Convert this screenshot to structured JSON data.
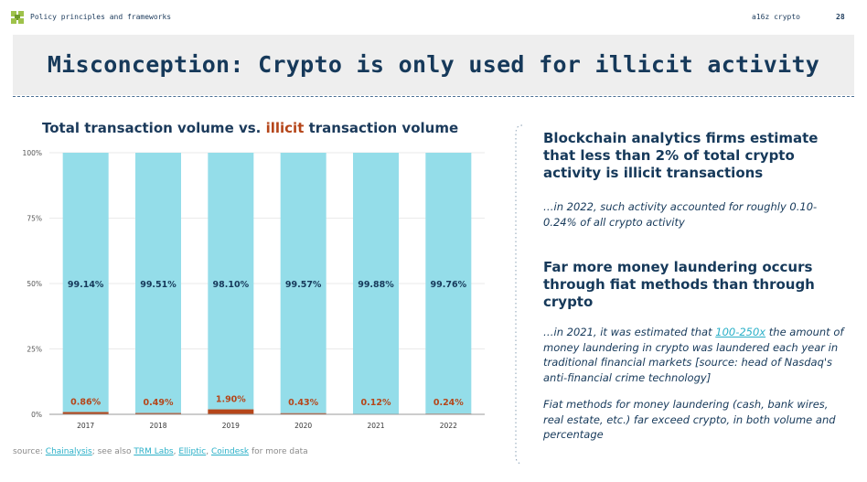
{
  "header": {
    "section": "Policy principles and frameworks",
    "brand": "a16z crypto",
    "page_number": "28"
  },
  "title": "Misconception: Crypto is only used for illicit activity",
  "chart_title": {
    "prefix": "Total transaction volume vs. ",
    "highlight": "illicit",
    "suffix": " transaction volume"
  },
  "chart_data": {
    "type": "bar",
    "stacked": true,
    "title": "Total transaction volume vs. illicit transaction volume",
    "categories": [
      "2017",
      "2018",
      "2019",
      "2020",
      "2021",
      "2022"
    ],
    "series": [
      {
        "name": "Illicit",
        "values": [
          0.86,
          0.49,
          1.9,
          0.43,
          0.12,
          0.24
        ],
        "labels": [
          "0.86%",
          "0.49%",
          "1.90%",
          "0.43%",
          "0.12%",
          "0.24%"
        ],
        "color": "#b5461a"
      },
      {
        "name": "Licit",
        "values": [
          99.14,
          99.51,
          98.1,
          99.57,
          99.88,
          99.76
        ],
        "labels": [
          "99.14%",
          "99.51%",
          "98.10%",
          "99.57%",
          "99.88%",
          "99.76%"
        ],
        "color": "#94dde9"
      }
    ],
    "yticks": [
      "0%",
      "25%",
      "50%",
      "75%",
      "100%"
    ],
    "ylim": [
      0,
      100
    ],
    "xlabel": "",
    "ylabel": ""
  },
  "source": {
    "prefix": "source: ",
    "chainalysis": "Chainalysis",
    "middle": "; see also ",
    "trm": "TRM Labs",
    "sep1": ", ",
    "elliptic": "Elliptic",
    "sep2": ", ",
    "coindesk": "Coindesk",
    "suffix": " for more data"
  },
  "right": {
    "heading1": "Blockchain analytics firms estimate that less than 2% of total crypto activity is illicit transactions",
    "note1": "…in 2022, such activity accounted for roughly 0.10-0.24% of all crypto activity",
    "heading2": "Far more money laundering occurs through fiat methods than through crypto",
    "note2_prefix": "…in 2021, it was estimated that ",
    "note2_link": "100-250x",
    "note2_suffix": " the amount of money laundering in crypto was laundered each year in traditional financial markets [source: head of Nasdaq's anti-financial crime technology]",
    "note3": "Fiat methods for money laundering (cash, bank wires, real estate, etc.) far exceed crypto, in both volume and percentage"
  },
  "colors": {
    "navy": "#16395a",
    "licit": "#94dde9",
    "illicit": "#b5461a",
    "link": "#2bb0c8"
  }
}
